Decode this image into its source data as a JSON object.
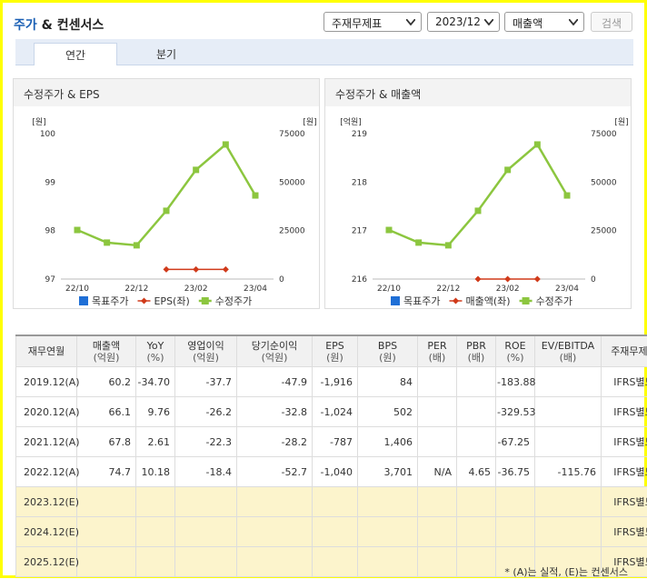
{
  "header": {
    "title": {
      "highlight": "주가",
      "rest": "& 컨센서스"
    },
    "selects": [
      "주재무제표",
      "2023/12",
      "매출액"
    ],
    "button": "검색"
  },
  "tabs": [
    "연간",
    "분기"
  ],
  "charts": [
    {
      "type": "line",
      "title": "수정주가 & EPS",
      "y_unit": "[원]",
      "y2_unit": "[원]",
      "categories": [
        "22/10",
        null,
        "22/12",
        null,
        "23/02",
        null,
        "23/04"
      ],
      "ylim": [
        97,
        100
      ],
      "yticks": [
        97,
        98,
        99,
        100
      ],
      "y2lim": [
        0,
        75000
      ],
      "y2ticks": [
        0,
        25000,
        50000,
        75000
      ],
      "series": [
        {
          "name": "목표주가",
          "color": "#1f6fd6",
          "marker": "square",
          "axis": "y2",
          "values": [
            null,
            null,
            null,
            null,
            null,
            null,
            null
          ]
        },
        {
          "name": "EPS(좌)",
          "color": "#d03a1a",
          "marker": "diamond",
          "axis": "y",
          "values": [
            null,
            null,
            null,
            97.2,
            97.2,
            97.2,
            null
          ]
        },
        {
          "name": "수정주가",
          "color": "#8cc63f",
          "marker": "square",
          "axis": "y2",
          "values": [
            25300,
            18800,
            17400,
            35200,
            56300,
            69400,
            43100
          ]
        }
      ]
    },
    {
      "type": "line",
      "title": "수정주가 & 매출액",
      "y_unit": "[억원]",
      "y2_unit": "[원]",
      "categories": [
        "22/10",
        null,
        "22/12",
        null,
        "23/02",
        null,
        "23/04"
      ],
      "ylim": [
        216,
        219
      ],
      "yticks": [
        216,
        217,
        218,
        219
      ],
      "y2lim": [
        0,
        75000
      ],
      "y2ticks": [
        0,
        25000,
        50000,
        75000
      ],
      "series": [
        {
          "name": "목표주가",
          "color": "#1f6fd6",
          "marker": "square",
          "axis": "y2",
          "values": [
            null,
            null,
            null,
            null,
            null,
            null,
            null
          ]
        },
        {
          "name": "매출액(좌)",
          "color": "#d03a1a",
          "marker": "diamond",
          "axis": "y",
          "values": [
            null,
            null,
            null,
            216,
            216,
            216,
            null
          ]
        },
        {
          "name": "수정주가",
          "color": "#8cc63f",
          "marker": "square",
          "axis": "y2",
          "values": [
            25300,
            18800,
            17400,
            35200,
            56300,
            69400,
            43100
          ]
        }
      ]
    }
  ],
  "table": {
    "columns": [
      {
        "name": "재무연월"
      },
      {
        "name": "매출액",
        "unit": "(억원)"
      },
      {
        "name": "YoY",
        "unit": "(%)"
      },
      {
        "name": "영업이익",
        "unit": "(억원)"
      },
      {
        "name": "당기순이익",
        "unit": "(억원)"
      },
      {
        "name": "EPS",
        "unit": "(원)"
      },
      {
        "name": "BPS",
        "unit": "(원)"
      },
      {
        "name": "PER",
        "unit": "(배)"
      },
      {
        "name": "PBR",
        "unit": "(배)"
      },
      {
        "name": "ROE",
        "unit": "(%)"
      },
      {
        "name": "EV/EBITDA",
        "unit": "(배)"
      },
      {
        "name": "주재무제표"
      }
    ],
    "rows": [
      [
        "2019.12(A)",
        "60.2",
        "-34.70",
        "-37.7",
        "-47.9",
        "-1,916",
        "84",
        null,
        null,
        "-183.88",
        null,
        "IFRS별도"
      ],
      [
        "2020.12(A)",
        "66.1",
        "9.76",
        "-26.2",
        "-32.8",
        "-1,024",
        "502",
        null,
        null,
        "-329.53",
        null,
        "IFRS별도"
      ],
      [
        "2021.12(A)",
        "67.8",
        "2.61",
        "-22.3",
        "-28.2",
        "-787",
        "1,406",
        null,
        null,
        "-67.25",
        null,
        "IFRS별도"
      ],
      [
        "2022.12(A)",
        "74.7",
        "10.18",
        "-18.4",
        "-52.7",
        "-1,040",
        "3,701",
        "N/A",
        "4.65",
        "-36.75",
        "-115.76",
        "IFRS별도"
      ],
      [
        "2023.12(E)",
        null,
        null,
        null,
        null,
        null,
        null,
        null,
        null,
        null,
        null,
        "IFRS별도"
      ],
      [
        "2024.12(E)",
        null,
        null,
        null,
        null,
        null,
        null,
        null,
        null,
        null,
        null,
        "IFRS별도"
      ],
      [
        "2025.12(E)",
        null,
        null,
        null,
        null,
        null,
        null,
        null,
        null,
        null,
        null,
        "IFRS별도"
      ]
    ]
  },
  "note": "* (A)는 실적, (E)는 컨센서스"
}
